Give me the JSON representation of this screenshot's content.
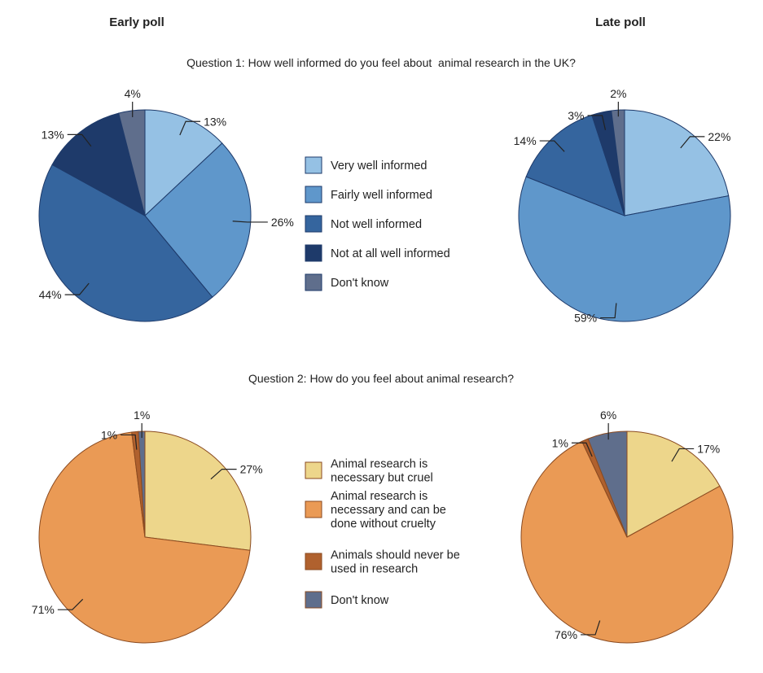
{
  "headers": {
    "early": "Early poll",
    "late": "Late poll"
  },
  "chart_data": [
    {
      "type": "pie",
      "title": "Question 1: How well informed do you feel about  animal research in the UK?",
      "categories": [
        "Very well informed",
        "Fairly well informed",
        "Not well informed",
        "Not at all well informed",
        "Don't know"
      ],
      "colors": [
        "#95c1e4",
        "#5f97cb",
        "#35659e",
        "#1e3a6a",
        "#5f6e8c"
      ],
      "edge_color": "#1e3a6a",
      "series": [
        {
          "name": "Early poll",
          "values": [
            13,
            26,
            44,
            13,
            4
          ],
          "labels": [
            "13%",
            "26%",
            "44%",
            "13%",
            "4%"
          ]
        },
        {
          "name": "Late poll",
          "values": [
            22,
            59,
            14,
            3,
            2
          ],
          "labels": [
            "22%",
            "59%",
            "14%",
            "3%",
            "2%"
          ]
        }
      ]
    },
    {
      "type": "pie",
      "title": "Question 2: How do you feel about animal research?",
      "categories": [
        [
          "Animal research is",
          "necessary but cruel"
        ],
        [
          "Animal research is",
          "necessary and can be",
          "done without cruelty"
        ],
        [
          "Animals should never be",
          "used in research"
        ],
        [
          "Don't know"
        ]
      ],
      "colors": [
        "#edd68b",
        "#ea9a55",
        "#b0612e",
        "#5f6e8c"
      ],
      "edge_color": "#8a4a20",
      "series": [
        {
          "name": "Early poll",
          "values": [
            27,
            71,
            1,
            1
          ],
          "labels": [
            "27%",
            "71%",
            "1%",
            "1%"
          ]
        },
        {
          "name": "Late poll",
          "values": [
            17,
            76,
            1,
            6
          ],
          "labels": [
            "17%",
            "76%",
            "1%",
            "6%"
          ]
        }
      ]
    }
  ]
}
